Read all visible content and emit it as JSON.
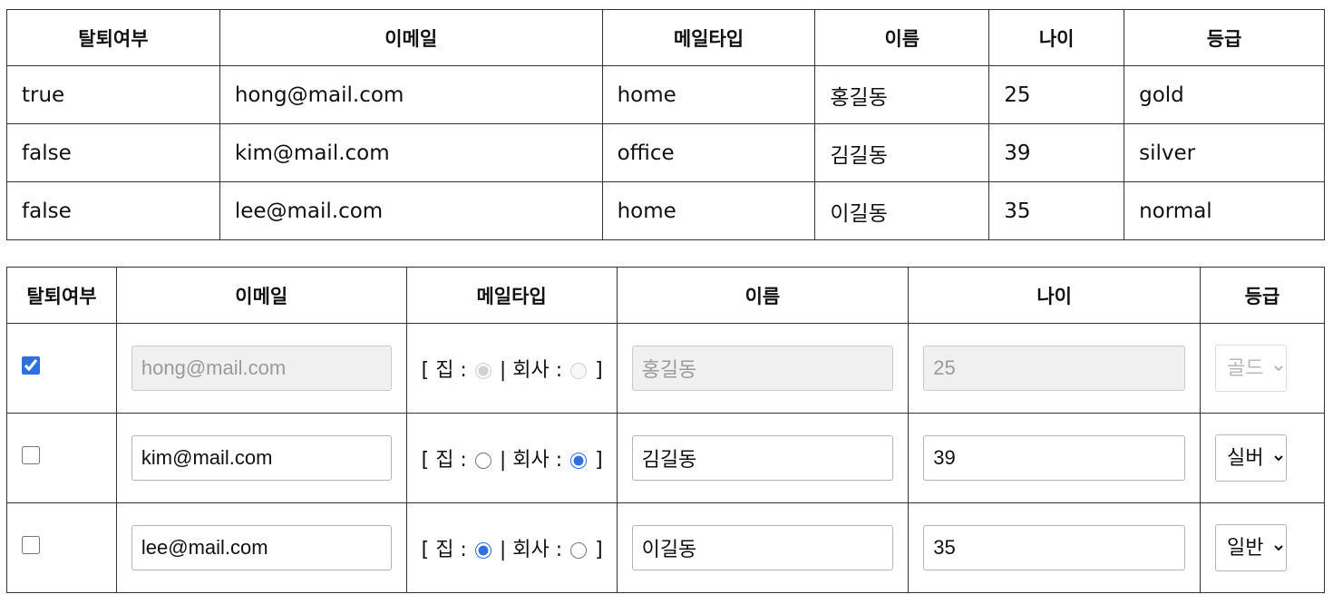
{
  "headers": [
    "탈퇴여부",
    "이메일",
    "메일타입",
    "이름",
    "나이",
    "등급"
  ],
  "table1": {
    "rows": [
      [
        "true",
        "hong@mail.com",
        "home",
        "홍길동",
        "25",
        "gold"
      ],
      [
        "false",
        "kim@mail.com",
        "office",
        "김길동",
        "39",
        "silver"
      ],
      [
        "false",
        "lee@mail.com",
        "home",
        "이길동",
        "35",
        "normal"
      ]
    ]
  },
  "table2": {
    "rows": [
      {
        "withdrawn": true,
        "email": "hong@mail.com",
        "mail_type": "home",
        "name": "홍길동",
        "age": "25",
        "grade": "골드",
        "disabled": true
      },
      {
        "withdrawn": false,
        "email": "kim@mail.com",
        "mail_type": "office",
        "name": "김길동",
        "age": "39",
        "grade": "실버",
        "disabled": false
      },
      {
        "withdrawn": false,
        "email": "lee@mail.com",
        "mail_type": "home",
        "name": "이길동",
        "age": "35",
        "grade": "일반",
        "disabled": false
      }
    ],
    "mail_type_labels": {
      "open": "[ ",
      "home": "집 : ",
      "separator": " | ",
      "office": "회사 : ",
      "close": " ]"
    }
  },
  "colors": {
    "border": "#333333",
    "accent": "#2f6fe0",
    "disabled_bg": "#f0f0f0",
    "disabled_text": "#9a9a9a"
  }
}
